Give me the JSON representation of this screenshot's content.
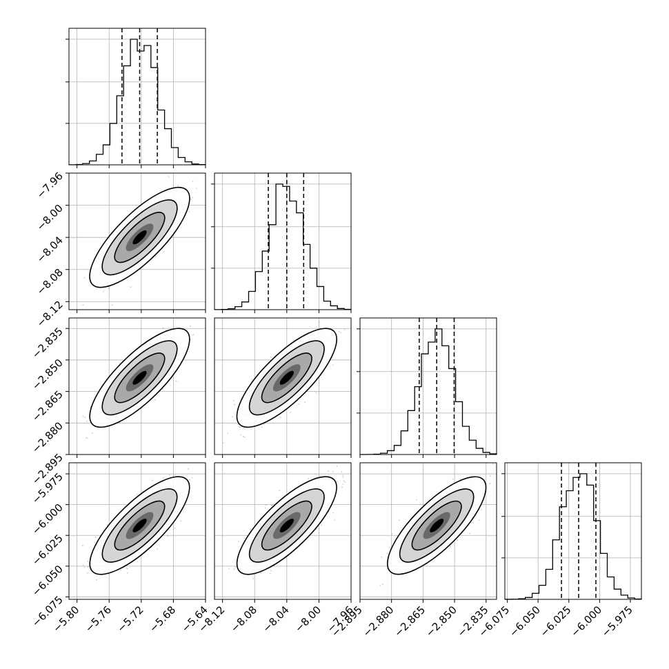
{
  "chart_data": {
    "type": "corner",
    "grid": true,
    "params": [
      {
        "range": [
          -5.81,
          -5.64
        ],
        "median": -5.722,
        "q_low": -5.744,
        "q_high": -5.7,
        "sigma": 0.022,
        "ticks": [
          -5.8,
          -5.76,
          -5.72,
          -5.68,
          -5.64
        ],
        "tick_labels": [
          "−5.80",
          "−5.76",
          "−5.72",
          "−5.68",
          "−5.64"
        ]
      },
      {
        "range": [
          -8.13,
          -7.96
        ],
        "median": -8.04,
        "q_low": -8.063,
        "q_high": -8.019,
        "sigma": 0.022,
        "ticks": [
          -8.12,
          -8.08,
          -8.04,
          -8.0,
          -7.96
        ],
        "tick_labels": [
          "−8.12",
          "−8.08",
          "−8.04",
          "−8.00",
          "−7.96"
        ]
      },
      {
        "range": [
          -2.895,
          -2.83
        ],
        "median": -2.8585,
        "q_low": -2.8668,
        "q_high": -2.8502,
        "sigma": 0.0083,
        "ticks": [
          -2.895,
          -2.88,
          -2.865,
          -2.85,
          -2.835
        ],
        "tick_labels": [
          "−2.895",
          "−2.880",
          "−2.865",
          "−2.850",
          "−2.835"
        ]
      },
      {
        "range": [
          -6.077,
          -5.966
        ],
        "median": -6.017,
        "q_low": -6.031,
        "q_high": -6.003,
        "sigma": 0.014,
        "ticks": [
          -6.075,
          -6.05,
          -6.025,
          -6.0,
          -5.975
        ],
        "tick_labels": [
          "−6.075",
          "−6.050",
          "−6.025",
          "−6.000",
          "−5.975"
        ]
      }
    ],
    "correlation": 0.78,
    "histogram_bins": 20,
    "hist_line_color": "#000000",
    "quantile_line_color": "#000000",
    "scatter_color": "#9a9a9a",
    "grid_color": "#b0b0b0"
  }
}
